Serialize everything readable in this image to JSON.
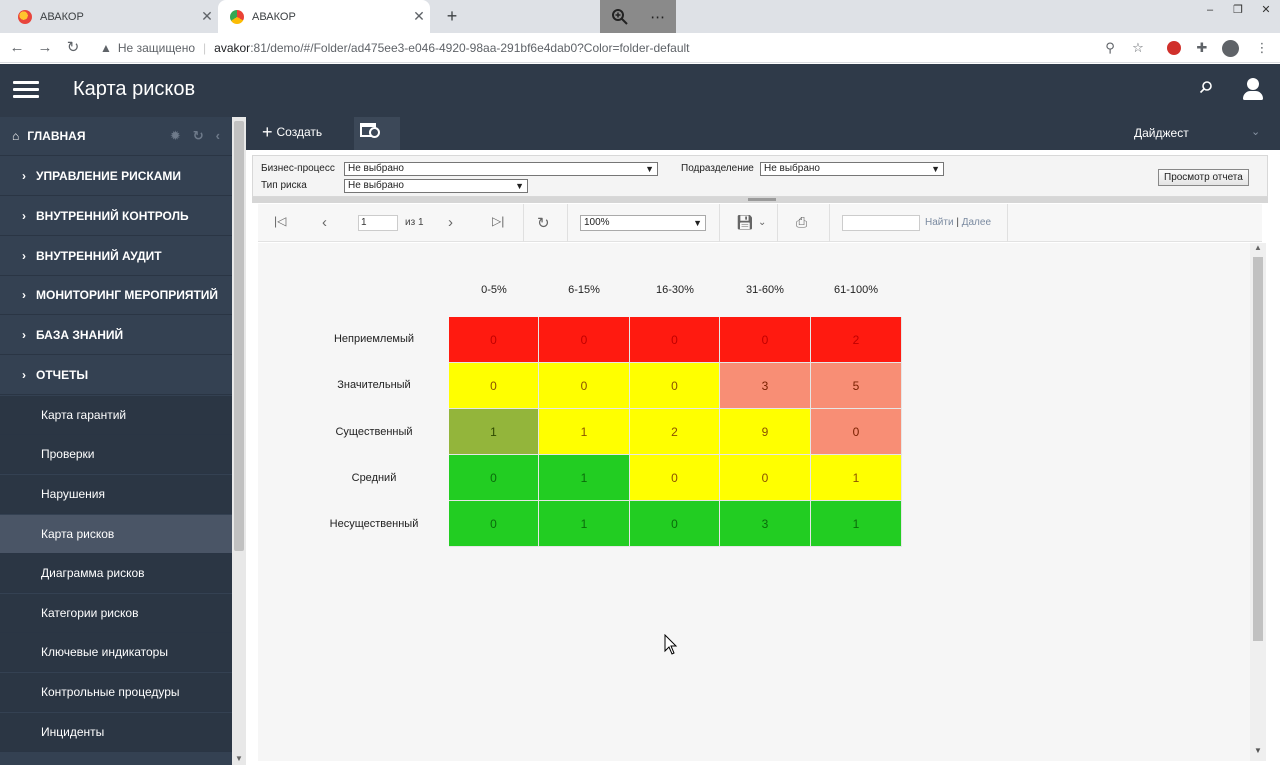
{
  "browser": {
    "tabs": [
      {
        "title": "АВАКОР",
        "close": "✕",
        "active": false
      },
      {
        "title": "АВАКОР",
        "close": "✕",
        "active": true
      }
    ],
    "new_tab": "+",
    "zoom_popup": {
      "icon": "zoom-in-icon",
      "more": "⋯"
    },
    "window_controls": [
      "‒",
      "❐",
      "✕"
    ],
    "security_label": "Не защищено",
    "url_host": "avakor",
    "url_rest": ":81/demo/#/Folder/ad475ee3-e046-4920-98aa-291bf6e4dab0?Color=folder-default"
  },
  "header": {
    "title": "Карта рисков"
  },
  "sidebar": {
    "home": "ГЛАВНАЯ",
    "sections": [
      "УПРАВЛЕНИЕ РИСКАМИ",
      "ВНУТРЕННИЙ КОНТРОЛЬ",
      "ВНУТРЕННИЙ АУДИТ",
      "МОНИТОРИНГ МЕРОПРИЯТИЙ",
      "БАЗА ЗНАНИЙ",
      "ОТЧЕТЫ"
    ],
    "items": [
      "Карта гарантий",
      "Проверки",
      "Нарушения",
      "Карта рисков",
      "Диаграмма рисков",
      "Категории рисков",
      "Ключевые индикаторы",
      "Контрольные процедуры",
      "Инциденты"
    ],
    "active_item": "Карта рисков"
  },
  "toolbar": {
    "create_label": "Создать",
    "digest_label": "Дайджест"
  },
  "filters": {
    "business_process_label": "Бизнес-процесс",
    "business_process_value": "Не выбрано",
    "department_label": "Подразделение",
    "department_value": "Не выбрано",
    "risk_type_label": "Тип риска",
    "risk_type_value": "Не выбрано",
    "view_report_label": "Просмотр отчета"
  },
  "report_toolbar": {
    "page_value": "1",
    "page_of": "из 1",
    "zoom_value": "100%",
    "find_label": "Найти",
    "find_sep": "|",
    "next_label": "Далее"
  },
  "risk_map": {
    "columns": [
      "0-5%",
      "6-15%",
      "16-30%",
      "31-60%",
      "61-100%"
    ],
    "rows": [
      {
        "label": "Неприемлемый",
        "values": [
          "0",
          "0",
          "0",
          "0",
          "2"
        ],
        "colors": [
          "red",
          "red",
          "red",
          "red",
          "red"
        ]
      },
      {
        "label": "Значительный",
        "values": [
          "0",
          "0",
          "0",
          "3",
          "5"
        ],
        "colors": [
          "yellow",
          "yellow",
          "yellow",
          "salmon",
          "salmon"
        ]
      },
      {
        "label": "Существенный",
        "values": [
          "1",
          "1",
          "2",
          "9",
          "0"
        ],
        "colors": [
          "olive",
          "yellow",
          "yellow",
          "yellow",
          "salmon"
        ]
      },
      {
        "label": "Средний",
        "values": [
          "0",
          "1",
          "0",
          "0",
          "1"
        ],
        "colors": [
          "green",
          "green",
          "yellow",
          "yellow",
          "yellow"
        ]
      },
      {
        "label": "Несущественный",
        "values": [
          "0",
          "1",
          "0",
          "3",
          "1"
        ],
        "colors": [
          "green",
          "green",
          "green",
          "green",
          "green"
        ]
      }
    ],
    "palette": {
      "red": "#ff1a10",
      "yellow": "#ffff00",
      "salmon": "#f88e75",
      "olive": "#93b53b",
      "green": "#22cd22"
    }
  }
}
